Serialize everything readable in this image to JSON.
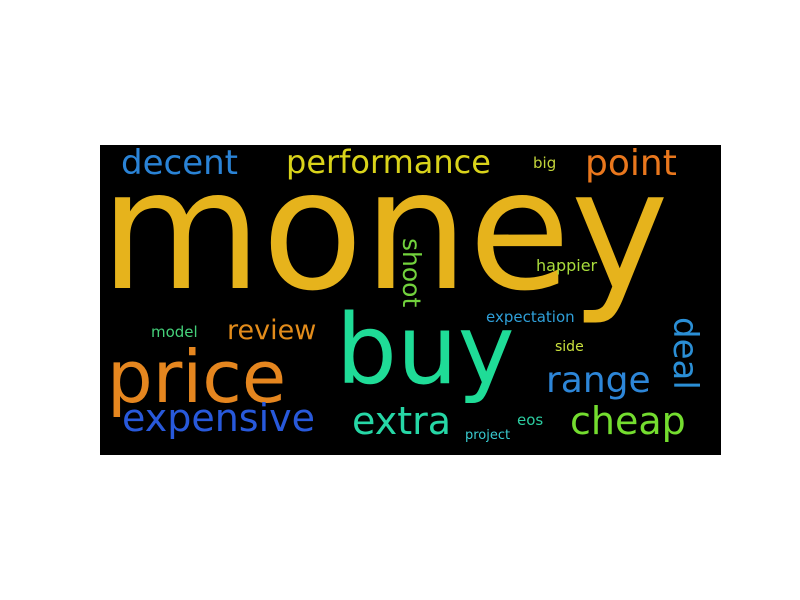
{
  "word_cloud": {
    "background": "#000000",
    "words": [
      {
        "text": "money",
        "color": "#e6b31c",
        "orientation": "horizontal"
      },
      {
        "text": "buy",
        "color": "#1fdc97",
        "orientation": "horizontal"
      },
      {
        "text": "price",
        "color": "#e5861f",
        "orientation": "horizontal"
      },
      {
        "text": "decent",
        "color": "#2a83d6",
        "orientation": "horizontal"
      },
      {
        "text": "performance",
        "color": "#d9d31a",
        "orientation": "horizontal"
      },
      {
        "text": "point",
        "color": "#e9771d",
        "orientation": "horizontal"
      },
      {
        "text": "big",
        "color": "#c3d43a",
        "orientation": "horizontal"
      },
      {
        "text": "shoot",
        "color": "#72d23d",
        "orientation": "vertical"
      },
      {
        "text": "happier",
        "color": "#a9dc3c",
        "orientation": "horizontal"
      },
      {
        "text": "review",
        "color": "#e38c1b",
        "orientation": "horizontal"
      },
      {
        "text": "model",
        "color": "#45d17a",
        "orientation": "horizontal"
      },
      {
        "text": "expectation",
        "color": "#2f9fd8",
        "orientation": "horizontal"
      },
      {
        "text": "deal",
        "color": "#2b8fd6",
        "orientation": "vertical"
      },
      {
        "text": "side",
        "color": "#cbe23e",
        "orientation": "horizontal"
      },
      {
        "text": "range",
        "color": "#2d86d8",
        "orientation": "horizontal"
      },
      {
        "text": "expensive",
        "color": "#2859db",
        "orientation": "horizontal"
      },
      {
        "text": "extra",
        "color": "#26d7a6",
        "orientation": "horizontal"
      },
      {
        "text": "eos",
        "color": "#2ccca0",
        "orientation": "horizontal"
      },
      {
        "text": "project",
        "color": "#39cbd0",
        "orientation": "horizontal"
      },
      {
        "text": "cheap",
        "color": "#74dd2f",
        "orientation": "horizontal"
      }
    ]
  }
}
